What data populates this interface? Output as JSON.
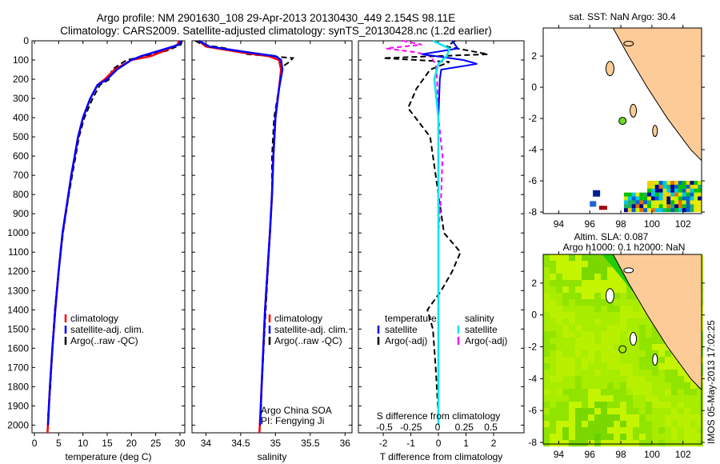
{
  "title": {
    "line1": "Argo profile: NM 2901630_108 29-Apr-2013 20130430_449 2.154S 98.11E",
    "line2": "Climatology: CARS2009. Satellite-adjusted climatology: synTS_20130428.nc (1.2d earlier)"
  },
  "colors": {
    "climatology": "#ff0000",
    "satellite": "#0000ff",
    "argo": "#000000",
    "s_satellite": "#00e5ee",
    "s_argo": "#ff00ff",
    "land": "#fccb98"
  },
  "depth_ticks": [
    0,
    100,
    200,
    300,
    400,
    500,
    600,
    700,
    800,
    900,
    1000,
    1100,
    1200,
    1300,
    1400,
    1500,
    1600,
    1700,
    1800,
    1900,
    2000
  ],
  "chart_data": [
    {
      "type": "line",
      "name": "temperature",
      "xlabel": "temperature (deg C)",
      "ylabel": "depth",
      "xlim": [
        -0.5,
        31
      ],
      "ylim": [
        2040,
        0
      ],
      "xticks": [
        0,
        5,
        10,
        15,
        20,
        25,
        30
      ],
      "legend": [
        "climatology",
        "satellite-adj. clim.",
        "Argo(..raw -QC)"
      ],
      "series": [
        {
          "name": "climatology",
          "depth": [
            0,
            20,
            50,
            80,
            100,
            150,
            200,
            230,
            300,
            400,
            500,
            600,
            700,
            800,
            1000,
            1200,
            1400,
            1600,
            1800,
            2040
          ],
          "values": [
            29.8,
            29.5,
            27,
            24,
            20,
            16.5,
            14.5,
            13,
            11.5,
            10,
            9,
            8.3,
            7.6,
            7,
            5.8,
            5,
            4.3,
            3.7,
            3.2,
            2.7
          ]
        },
        {
          "name": "satellite-adj. clim.",
          "depth": [
            0,
            20,
            50,
            80,
            100,
            150,
            200,
            230,
            300,
            400,
            500,
            600,
            700,
            800,
            1000,
            1200,
            1400,
            1600,
            1800,
            2000
          ],
          "values": [
            30.2,
            29.8,
            26,
            22,
            20,
            17,
            15,
            13,
            11.5,
            10,
            9,
            8.3,
            7.6,
            7,
            5.8,
            5,
            4.3,
            3.7,
            3.2,
            2.8
          ]
        },
        {
          "name": "Argo(..raw -QC)",
          "depth": [
            0,
            20,
            50,
            80,
            100,
            150,
            200,
            230,
            300,
            400,
            500,
            600,
            700,
            800,
            1000,
            1200,
            1400,
            1600,
            1800,
            1950
          ],
          "values": [
            30.4,
            30.2,
            27.5,
            23,
            19,
            16,
            15.5,
            13.5,
            12,
            10.3,
            9.2,
            8.5,
            7.8,
            7.1,
            5.9,
            5,
            4.2,
            3.7,
            3.3,
            2.8
          ]
        }
      ]
    },
    {
      "type": "line",
      "name": "salinity",
      "xlabel": "salinity",
      "xlim": [
        33.8,
        36.1
      ],
      "ylim": [
        2040,
        0
      ],
      "xticks": [
        "34",
        "34.5",
        "35",
        "35.5",
        "36"
      ],
      "legend": [
        "climatology",
        "satellite-adj. clim.",
        "Argo(..raw -QC)"
      ],
      "annotation": [
        "Argo China SOA",
        "PI: Fengying Ji"
      ],
      "series": [
        {
          "name": "climatology",
          "depth": [
            0,
            30,
            60,
            80,
            100,
            150,
            250,
            400,
            600,
            800,
            1000,
            1400,
            1800,
            2040
          ],
          "values": [
            33.9,
            34.0,
            34.5,
            34.9,
            35.05,
            35.08,
            35.05,
            35.0,
            34.97,
            34.95,
            34.92,
            34.85,
            34.8,
            34.77
          ]
        },
        {
          "name": "satellite-adj. clim.",
          "depth": [
            0,
            30,
            60,
            80,
            100,
            150,
            250,
            400,
            600,
            800,
            1000,
            1400,
            1800,
            2000
          ],
          "values": [
            33.9,
            34.05,
            34.6,
            35.0,
            35.08,
            35.1,
            35.05,
            35.0,
            34.97,
            34.95,
            34.92,
            34.85,
            34.8,
            34.78
          ]
        },
        {
          "name": "Argo(..raw -QC)",
          "depth": [
            0,
            20,
            40,
            70,
            90,
            110,
            130,
            170,
            250,
            400,
            600,
            800,
            1000,
            1400,
            1800,
            1950
          ],
          "values": [
            33.85,
            33.95,
            34.3,
            34.6,
            35.25,
            35.2,
            35.12,
            35.08,
            35.05,
            34.98,
            34.95,
            34.95,
            34.92,
            34.86,
            34.8,
            34.79
          ]
        }
      ]
    },
    {
      "type": "line",
      "name": "difference",
      "xlabel": "T difference from climatology",
      "x2label": "S difference from climatology",
      "xlim": [
        -2.9,
        3.1
      ],
      "xticks": [
        "-2",
        "-1",
        "0",
        "1",
        "2"
      ],
      "x2ticks": [
        "-0.5",
        "-0.25",
        "0",
        "0.25",
        "0.5"
      ],
      "legend": {
        "temperature": "temperature",
        "salinity": "salinity",
        "t_sat": "satellite",
        "t_argo": "Argo(-adj)",
        "s_sat": "satellite",
        "s_argo": "Argo(-adj)"
      },
      "series": [
        {
          "name": "T satellite",
          "depth": [
            0,
            40,
            70,
            100,
            120,
            150,
            200,
            400,
            800,
            1200,
            1600,
            2000
          ],
          "values": [
            0.5,
            0.7,
            -0.6,
            0.9,
            1.4,
            0.1,
            0.05,
            0,
            0,
            0,
            0,
            0
          ]
        },
        {
          "name": "T Argo(-adj)",
          "depth": [
            0,
            30,
            70,
            90,
            110,
            150,
            250,
            350,
            500,
            700,
            900,
            1000,
            1100,
            1200,
            1300,
            1400,
            1500,
            1700,
            1950
          ],
          "values": [
            0.6,
            0.3,
            1.8,
            -2,
            0.4,
            -0.3,
            -0.8,
            -1.1,
            -0.3,
            -0.1,
            0.1,
            0.2,
            0.8,
            0.5,
            0.1,
            -0.4,
            -0.2,
            -0.1,
            0
          ]
        },
        {
          "name": "S satellite",
          "depth": [
            0,
            20,
            40,
            80,
            120,
            200,
            400,
            800,
            1200,
            1600,
            2000
          ],
          "values": [
            -0.2,
            0.1,
            0.4,
            0.3,
            0,
            -0.15,
            0,
            0,
            0,
            0,
            0
          ]
        },
        {
          "name": "S Argo(-adj)",
          "depth": [
            0,
            20,
            40,
            60,
            80,
            120,
            200,
            400,
            600,
            800,
            1000,
            1400,
            1800,
            1950
          ],
          "values": [
            -1.3,
            -0.6,
            -1.9,
            -0.8,
            -0.3,
            -0.1,
            -0.05,
            0,
            0.15,
            0.1,
            0,
            0,
            0,
            0
          ]
        }
      ]
    },
    {
      "type": "heatmap",
      "name": "sst-map",
      "title": "sat. SST: NaN Argo: 30.4",
      "xticks": [
        "94",
        "96",
        "98",
        "100",
        "102"
      ],
      "yticks": [
        "2",
        "0",
        "-2",
        "-4",
        "-6",
        "-8"
      ],
      "argo_position": {
        "lon": 98.11,
        "lat": -2.154
      }
    },
    {
      "type": "heatmap",
      "name": "sla-map",
      "title": [
        "Altim. SLA: 0.087",
        "Argo h1000: 0.1 h2000: NaN"
      ],
      "xticks": [
        "94",
        "96",
        "98",
        "100",
        "102"
      ],
      "yticks": [
        "2",
        "0",
        "-2",
        "-4",
        "-6",
        "-8"
      ]
    }
  ],
  "footer": "IMOS 05-May-2013 17:02:25"
}
